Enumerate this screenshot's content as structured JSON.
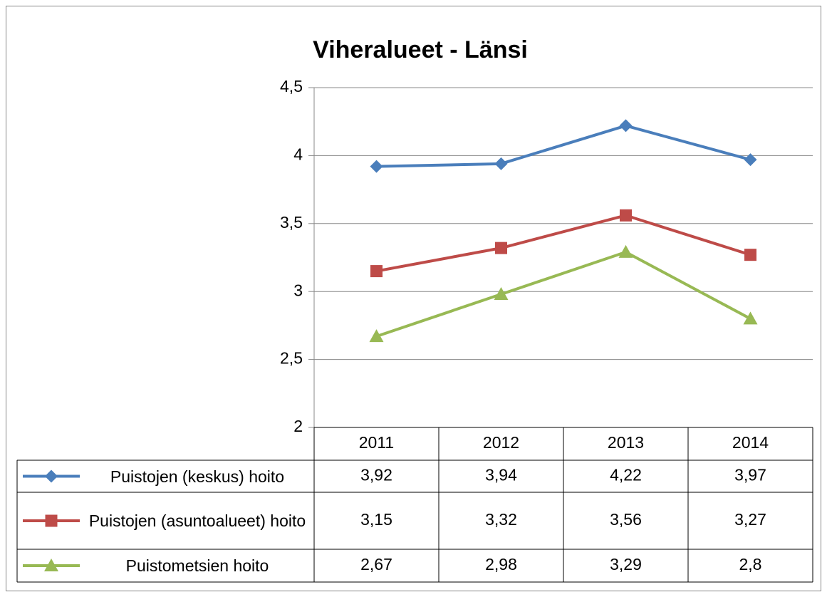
{
  "chart_data": {
    "type": "line",
    "title": "Viheralueet - Länsi",
    "categories": [
      "2011",
      "2012",
      "2013",
      "2014"
    ],
    "series": [
      {
        "name": "Puistojen (keskus) hoito",
        "color": "#4a7ebb",
        "marker": "diamond",
        "values": [
          3.92,
          3.94,
          4.22,
          3.97
        ],
        "value_labels": [
          "3,92",
          "3,94",
          "4,22",
          "3,97"
        ]
      },
      {
        "name": "Puistojen (asuntoalueet) hoito",
        "color": "#be4b48",
        "marker": "square",
        "values": [
          3.15,
          3.32,
          3.56,
          3.27
        ],
        "value_labels": [
          "3,15",
          "3,32",
          "3,56",
          "3,27"
        ]
      },
      {
        "name": "Puistometsien hoito",
        "color": "#98b954",
        "marker": "triangle",
        "values": [
          2.67,
          2.98,
          3.29,
          2.8
        ],
        "value_labels": [
          "2,67",
          "2,98",
          "3,29",
          "2,8"
        ]
      }
    ],
    "ylim": [
      2,
      4.5
    ],
    "yticks": [
      2,
      {
        "value": 2.5,
        "label": "2,5"
      },
      3,
      {
        "value": 3.5,
        "label": "3,5"
      },
      4,
      {
        "value": 4.5,
        "label": "4,5"
      }
    ],
    "grid": true
  }
}
